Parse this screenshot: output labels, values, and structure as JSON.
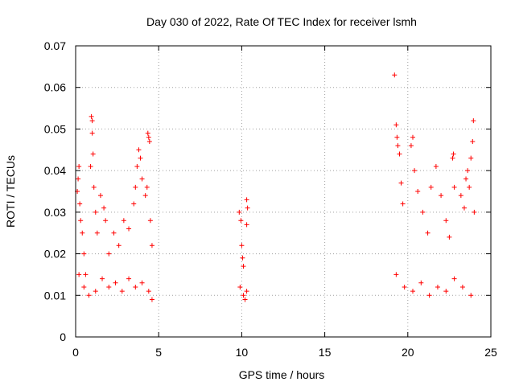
{
  "chart_data": {
    "type": "scatter",
    "title": "Day 030 of 2022, Rate Of TEC Index for receiver lsmh",
    "xlabel": "GPS time / hours",
    "ylabel": "ROTI / TECUs",
    "xlim": [
      0,
      25
    ],
    "ylim": [
      0,
      0.07
    ],
    "xticks": [
      0,
      5,
      10,
      15,
      20,
      25
    ],
    "xtick_labels": [
      "0",
      "5",
      "10",
      "15",
      "20",
      "25"
    ],
    "yticks": [
      0,
      0.01,
      0.02,
      0.03,
      0.04,
      0.05,
      0.06,
      0.07
    ],
    "ytick_labels": [
      "0",
      "0.01",
      "0.02",
      "0.03",
      "0.04",
      "0.05",
      "0.06",
      "0.07"
    ],
    "grid": true,
    "marker": "plus",
    "color": "#ff0000",
    "series": [
      {
        "name": "",
        "points": [
          [
            0.1,
            0.035
          ],
          [
            0.15,
            0.038
          ],
          [
            0.2,
            0.041
          ],
          [
            0.25,
            0.032
          ],
          [
            0.3,
            0.028
          ],
          [
            0.4,
            0.025
          ],
          [
            0.5,
            0.02
          ],
          [
            0.6,
            0.015
          ],
          [
            0.9,
            0.041
          ],
          [
            0.95,
            0.053
          ],
          [
            1.0,
            0.052
          ],
          [
            1.0,
            0.049
          ],
          [
            1.05,
            0.044
          ],
          [
            1.1,
            0.036
          ],
          [
            1.2,
            0.03
          ],
          [
            1.3,
            0.025
          ],
          [
            1.5,
            0.034
          ],
          [
            1.7,
            0.031
          ],
          [
            1.8,
            0.028
          ],
          [
            2.0,
            0.02
          ],
          [
            2.3,
            0.025
          ],
          [
            2.6,
            0.022
          ],
          [
            2.9,
            0.028
          ],
          [
            3.2,
            0.026
          ],
          [
            3.5,
            0.032
          ],
          [
            3.6,
            0.036
          ],
          [
            3.7,
            0.041
          ],
          [
            3.8,
            0.045
          ],
          [
            3.9,
            0.043
          ],
          [
            4.0,
            0.038
          ],
          [
            4.2,
            0.034
          ],
          [
            4.3,
            0.036
          ],
          [
            4.35,
            0.049
          ],
          [
            4.4,
            0.048
          ],
          [
            4.45,
            0.047
          ],
          [
            4.5,
            0.028
          ],
          [
            4.6,
            0.022
          ],
          [
            0.2,
            0.015
          ],
          [
            0.5,
            0.012
          ],
          [
            0.8,
            0.01
          ],
          [
            1.2,
            0.011
          ],
          [
            1.6,
            0.014
          ],
          [
            2.0,
            0.012
          ],
          [
            2.4,
            0.013
          ],
          [
            2.8,
            0.011
          ],
          [
            3.2,
            0.014
          ],
          [
            3.6,
            0.012
          ],
          [
            4.0,
            0.013
          ],
          [
            4.4,
            0.011
          ],
          [
            4.6,
            0.009
          ],
          [
            9.85,
            0.03
          ],
          [
            9.95,
            0.028
          ],
          [
            10.0,
            0.022
          ],
          [
            10.05,
            0.019
          ],
          [
            10.1,
            0.017
          ],
          [
            10.3,
            0.033
          ],
          [
            10.35,
            0.031
          ],
          [
            10.3,
            0.027
          ],
          [
            9.9,
            0.012
          ],
          [
            10.1,
            0.01
          ],
          [
            10.2,
            0.009
          ],
          [
            10.3,
            0.011
          ],
          [
            19.2,
            0.063
          ],
          [
            19.3,
            0.051
          ],
          [
            19.35,
            0.048
          ],
          [
            19.4,
            0.046
          ],
          [
            19.5,
            0.044
          ],
          [
            19.6,
            0.037
          ],
          [
            19.7,
            0.032
          ],
          [
            20.2,
            0.046
          ],
          [
            20.3,
            0.048
          ],
          [
            20.4,
            0.04
          ],
          [
            20.6,
            0.035
          ],
          [
            20.9,
            0.03
          ],
          [
            21.2,
            0.025
          ],
          [
            21.4,
            0.036
          ],
          [
            21.7,
            0.041
          ],
          [
            22.0,
            0.034
          ],
          [
            22.3,
            0.028
          ],
          [
            22.5,
            0.024
          ],
          [
            22.7,
            0.043
          ],
          [
            22.75,
            0.044
          ],
          [
            22.8,
            0.036
          ],
          [
            23.2,
            0.034
          ],
          [
            23.4,
            0.031
          ],
          [
            23.5,
            0.038
          ],
          [
            23.6,
            0.04
          ],
          [
            23.7,
            0.036
          ],
          [
            23.8,
            0.043
          ],
          [
            23.9,
            0.047
          ],
          [
            23.95,
            0.052
          ],
          [
            24.0,
            0.03
          ],
          [
            19.3,
            0.015
          ],
          [
            19.8,
            0.012
          ],
          [
            20.3,
            0.011
          ],
          [
            20.8,
            0.013
          ],
          [
            21.3,
            0.01
          ],
          [
            21.8,
            0.012
          ],
          [
            22.3,
            0.011
          ],
          [
            22.8,
            0.014
          ],
          [
            23.3,
            0.012
          ],
          [
            23.8,
            0.01
          ]
        ]
      }
    ]
  }
}
